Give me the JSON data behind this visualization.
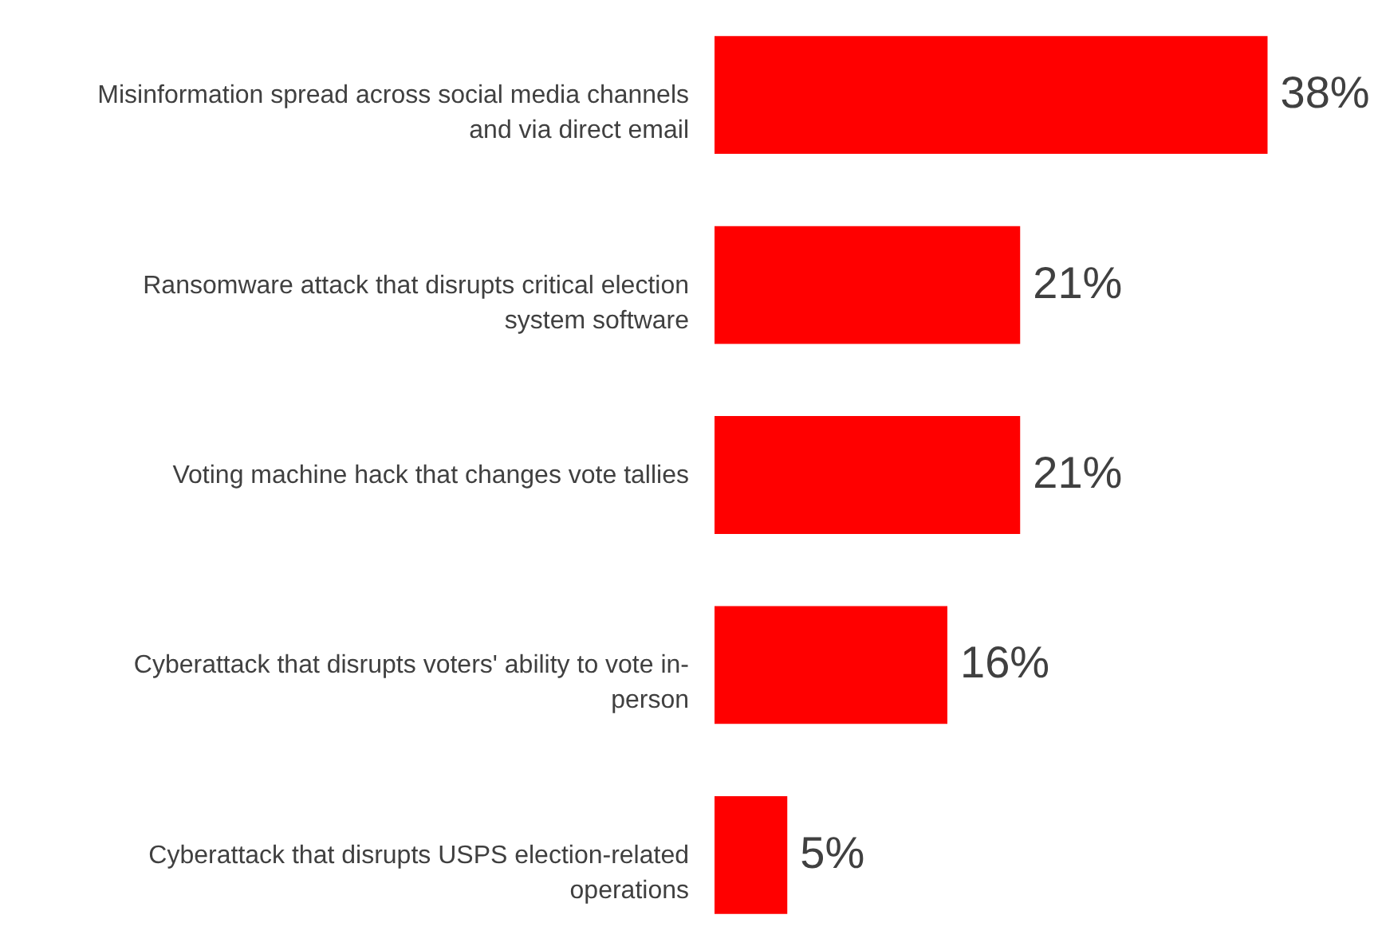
{
  "chart_data": {
    "type": "bar",
    "orientation": "horizontal",
    "categories": [
      "Misinformation spread across social media channels and via direct email",
      "Ransomware attack that disrupts critical election system software",
      "Voting machine hack that changes vote tallies",
      "Cyberattack that disrupts voters' ability to vote in-person",
      "Cyberattack that disrupts USPS election-related operations"
    ],
    "values": [
      38,
      21,
      21,
      16,
      5
    ],
    "value_labels": [
      "38%",
      "21%",
      "21%",
      "16%",
      "5%"
    ],
    "color": "#ff0000"
  }
}
